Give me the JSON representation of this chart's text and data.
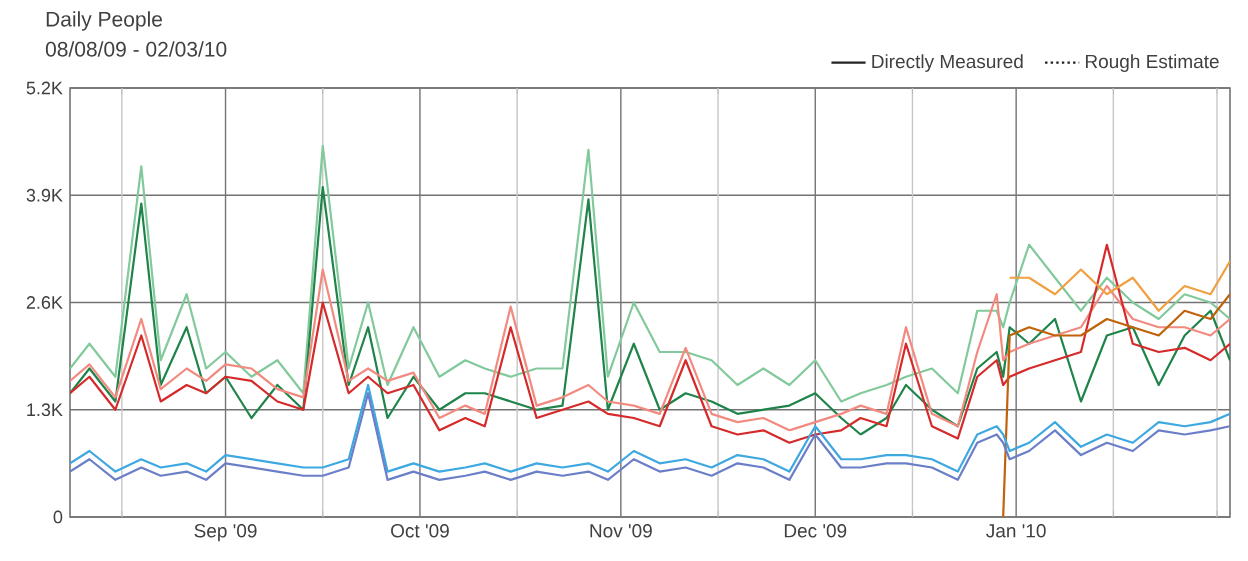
{
  "chart_data": {
    "type": "line",
    "title": "Daily People",
    "subtitle": "08/08/09 - 02/03/10",
    "x": [
      "2009-08-08",
      "2009-08-11",
      "2009-08-15",
      "2009-08-19",
      "2009-08-22",
      "2009-08-26",
      "2009-08-29",
      "2009-09-01",
      "2009-09-05",
      "2009-09-09",
      "2009-09-13",
      "2009-09-16",
      "2009-09-20",
      "2009-09-23",
      "2009-09-26",
      "2009-09-30",
      "2009-10-04",
      "2009-10-08",
      "2009-10-11",
      "2009-10-15",
      "2009-10-19",
      "2009-10-23",
      "2009-10-27",
      "2009-10-30",
      "2009-11-03",
      "2009-11-07",
      "2009-11-11",
      "2009-11-15",
      "2009-11-19",
      "2009-11-23",
      "2009-11-27",
      "2009-12-01",
      "2009-12-05",
      "2009-12-08",
      "2009-12-12",
      "2009-12-15",
      "2009-12-19",
      "2009-12-23",
      "2009-12-26",
      "2009-12-29",
      "2009-12-30",
      "2009-12-31",
      "2010-01-03",
      "2010-01-07",
      "2010-01-11",
      "2010-01-15",
      "2010-01-19",
      "2010-01-23",
      "2010-01-27",
      "2010-01-31",
      "2010-02-03"
    ],
    "series": [
      {
        "color": "#82c99b",
        "values": [
          1800,
          2100,
          1700,
          4250,
          1900,
          2700,
          1800,
          2000,
          1700,
          1900,
          1500,
          4500,
          1800,
          2600,
          1600,
          2300,
          1700,
          1900,
          1800,
          1700,
          1800,
          1800,
          4450,
          1700,
          2600,
          2000,
          2000,
          1900,
          1600,
          1800,
          1600,
          1900,
          1400,
          1500,
          1600,
          1700,
          1800,
          1500,
          2500,
          2500,
          2300,
          2600,
          3300,
          2900,
          2500,
          2900,
          2600,
          2400,
          2700,
          2600,
          2400
        ]
      },
      {
        "color": "#1e8449",
        "values": [
          1500,
          1800,
          1400,
          3800,
          1600,
          2300,
          1500,
          1700,
          1200,
          1600,
          1300,
          4000,
          1600,
          2300,
          1200,
          1700,
          1300,
          1500,
          1500,
          1400,
          1300,
          1350,
          3850,
          1300,
          2100,
          1300,
          1500,
          1400,
          1250,
          1300,
          1350,
          1500,
          1200,
          1000,
          1200,
          1600,
          1300,
          1100,
          1800,
          2000,
          1700,
          2300,
          2100,
          2400,
          1400,
          2200,
          2300,
          1600,
          2200,
          2500,
          1900
        ]
      },
      {
        "color": "#f28a80",
        "values": [
          1650,
          1850,
          1450,
          2400,
          1550,
          1800,
          1650,
          1850,
          1800,
          1550,
          1450,
          3000,
          1650,
          1800,
          1650,
          1750,
          1200,
          1350,
          1250,
          2550,
          1350,
          1450,
          1600,
          1400,
          1350,
          1250,
          2050,
          1250,
          1150,
          1200,
          1050,
          1150,
          1250,
          1350,
          1250,
          2300,
          1250,
          1100,
          2000,
          2700,
          1900,
          2000,
          2100,
          2200,
          2300,
          2800,
          2400,
          2300,
          2300,
          2200,
          2400
        ]
      },
      {
        "color": "#d62a2a",
        "values": [
          1500,
          1700,
          1300,
          2200,
          1400,
          1600,
          1500,
          1700,
          1650,
          1400,
          1300,
          2600,
          1500,
          1700,
          1500,
          1600,
          1050,
          1200,
          1100,
          2300,
          1200,
          1300,
          1400,
          1250,
          1200,
          1100,
          1900,
          1100,
          1000,
          1050,
          900,
          1000,
          1050,
          1200,
          1100,
          2100,
          1100,
          950,
          1700,
          1900,
          1600,
          1700,
          1800,
          1900,
          2000,
          3300,
          2100,
          2000,
          2050,
          1900,
          2100
        ]
      },
      {
        "color": "#f0a040",
        "values": [
          null,
          null,
          null,
          null,
          null,
          null,
          null,
          null,
          null,
          null,
          null,
          null,
          null,
          null,
          null,
          null,
          null,
          null,
          null,
          null,
          null,
          null,
          null,
          null,
          null,
          null,
          null,
          null,
          null,
          null,
          null,
          null,
          null,
          null,
          null,
          null,
          null,
          null,
          null,
          null,
          null,
          2900,
          2900,
          2700,
          3000,
          2700,
          2900,
          2500,
          2800,
          2700,
          3100
        ]
      },
      {
        "color": "#c0620a",
        "values": [
          null,
          null,
          null,
          null,
          null,
          null,
          null,
          null,
          null,
          null,
          null,
          null,
          null,
          null,
          null,
          null,
          null,
          null,
          null,
          null,
          null,
          null,
          null,
          null,
          null,
          null,
          null,
          null,
          null,
          null,
          null,
          null,
          null,
          null,
          null,
          null,
          null,
          null,
          null,
          null,
          0,
          2200,
          2300,
          2200,
          2200,
          2400,
          2300,
          2200,
          2500,
          2400,
          2700
        ]
      },
      {
        "color": "#3ea8e0",
        "values": [
          650,
          800,
          550,
          700,
          600,
          650,
          550,
          750,
          700,
          650,
          600,
          600,
          700,
          1600,
          550,
          650,
          550,
          600,
          650,
          550,
          650,
          600,
          650,
          550,
          800,
          650,
          700,
          600,
          750,
          700,
          550,
          1100,
          700,
          700,
          750,
          750,
          700,
          550,
          1000,
          1100,
          1000,
          800,
          900,
          1150,
          850,
          1000,
          900,
          1150,
          1100,
          1150,
          1250
        ]
      },
      {
        "color": "#6a7fc8",
        "values": [
          550,
          700,
          450,
          600,
          500,
          550,
          450,
          650,
          600,
          550,
          500,
          500,
          600,
          1500,
          450,
          550,
          450,
          500,
          550,
          450,
          550,
          500,
          550,
          450,
          700,
          550,
          600,
          500,
          650,
          600,
          450,
          1000,
          600,
          600,
          650,
          650,
          600,
          450,
          900,
          1000,
          900,
          700,
          800,
          1050,
          750,
          900,
          800,
          1050,
          1000,
          1050,
          1100
        ]
      },
      {
        "name": "Directly Measured",
        "color": "#222222",
        "line_style": "solid",
        "values": [
          null,
          null,
          null,
          null,
          null,
          null,
          null,
          null,
          null,
          null,
          null,
          null,
          null,
          null,
          null,
          null,
          null,
          null,
          null,
          null,
          null,
          null,
          null,
          null,
          null,
          null,
          null,
          null,
          null,
          null,
          null,
          null,
          null,
          null,
          null,
          null,
          null,
          null,
          null,
          null,
          null,
          null,
          null,
          null,
          null,
          null,
          null,
          null,
          null,
          null,
          null
        ]
      },
      {
        "name": "Rough Estimate",
        "color": "#222222",
        "line_style": "dotted",
        "values": [
          null,
          null,
          null,
          null,
          null,
          null,
          null,
          null,
          null,
          null,
          null,
          null,
          null,
          null,
          null,
          null,
          null,
          null,
          null,
          null,
          null,
          null,
          null,
          null,
          null,
          null,
          null,
          null,
          null,
          null,
          null,
          null,
          null,
          null,
          null,
          null,
          null,
          null,
          null,
          null,
          null,
          null,
          null,
          null,
          null,
          null,
          null,
          null,
          null,
          null,
          null
        ]
      }
    ],
    "xlim": [
      "2009-08-08",
      "2010-02-03"
    ],
    "xticks": [
      {
        "value": "2009-08-16",
        "label": null
      },
      {
        "value": "2009-09-01",
        "label": "Sep '09"
      },
      {
        "value": "2009-09-16",
        "label": null
      },
      {
        "value": "2009-10-01",
        "label": "Oct '09"
      },
      {
        "value": "2009-10-16",
        "label": null
      },
      {
        "value": "2009-11-01",
        "label": "Nov '09"
      },
      {
        "value": "2009-11-16",
        "label": null
      },
      {
        "value": "2009-12-01",
        "label": "Dec '09"
      },
      {
        "value": "2009-12-16",
        "label": null
      },
      {
        "value": "2010-01-01",
        "label": "Jan '10"
      },
      {
        "value": "2010-01-16",
        "label": null
      },
      {
        "value": "2010-02-01",
        "label": null
      }
    ],
    "ylim": [
      0,
      5200
    ],
    "yticks": [
      0,
      {
        "value": 1300,
        "label": "1.3K"
      },
      {
        "value": 2600,
        "label": "2.6K"
      },
      {
        "value": 3900,
        "label": "3.9K"
      },
      {
        "value": 5200,
        "label": "5.2K"
      }
    ],
    "grid": true,
    "legend": "top right"
  }
}
